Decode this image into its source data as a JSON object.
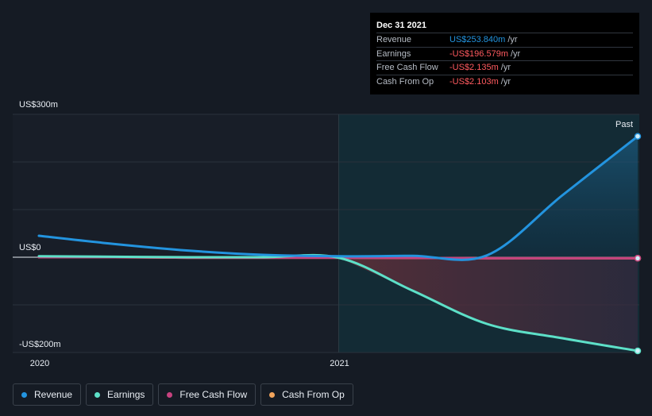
{
  "chart_data": {
    "type": "line",
    "x": [
      "2019-12-31",
      "2020-03-31",
      "2020-06-30",
      "2020-09-30",
      "2020-12-31",
      "2021-03-31",
      "2021-06-30",
      "2021-09-30",
      "2021-12-31"
    ],
    "series": [
      {
        "name": "Revenue",
        "color": "#2394df",
        "values": [
          45,
          28,
          14,
          5,
          2,
          3,
          4,
          130,
          253.84
        ]
      },
      {
        "name": "Earnings",
        "color": "#5de0c8",
        "values": [
          2,
          1,
          0,
          0,
          -1,
          -70,
          -140,
          -170,
          -196.579
        ]
      },
      {
        "name": "Free Cash Flow",
        "color": "#c7427f",
        "values": [
          0,
          0,
          -1,
          -1,
          -1,
          -1.5,
          -2,
          -2,
          -2.135
        ]
      },
      {
        "name": "Cash From Op",
        "color": "#f2a45c",
        "values": [
          0,
          0,
          -1,
          -1,
          -1,
          -1.5,
          -2,
          -2,
          -2.103
        ]
      }
    ],
    "ylim": [
      -200,
      300
    ],
    "y_ticks": [
      {
        "value": 300,
        "label": "US$300m"
      },
      {
        "value": 0,
        "label": "US$0"
      },
      {
        "value": -200,
        "label": "-US$200m"
      }
    ],
    "x_ticks": [
      {
        "value": "2020",
        "label": "2020"
      },
      {
        "value": "2021",
        "label": "2021"
      }
    ],
    "past_label": "Past",
    "highlight_start": "2020-12-31"
  },
  "tooltip": {
    "date": "Dec 31 2021",
    "rows": [
      {
        "label": "Revenue",
        "value": "US$253.840m",
        "unit": "/yr",
        "color": "#2394df"
      },
      {
        "label": "Earnings",
        "value": "-US$196.579m",
        "unit": "/yr",
        "color": "#ff5a5f"
      },
      {
        "label": "Free Cash Flow",
        "value": "-US$2.135m",
        "unit": "/yr",
        "color": "#ff5a5f"
      },
      {
        "label": "Cash From Op",
        "value": "-US$2.103m",
        "unit": "/yr",
        "color": "#ff5a5f"
      }
    ]
  },
  "legend": [
    {
      "label": "Revenue",
      "color": "#2394df"
    },
    {
      "label": "Earnings",
      "color": "#5de0c8"
    },
    {
      "label": "Free Cash Flow",
      "color": "#c7427f"
    },
    {
      "label": "Cash From Op",
      "color": "#f2a45c"
    }
  ]
}
